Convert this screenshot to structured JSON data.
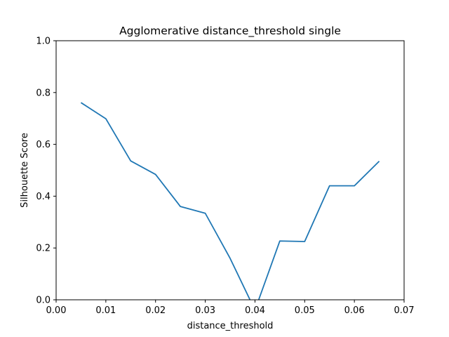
{
  "chart_data": {
    "type": "line",
    "title": "Agglomerative distance_threshold single",
    "xlabel": "distance_threshold",
    "ylabel": "Silhouette Score",
    "xlim": [
      0.0,
      0.07
    ],
    "ylim": [
      0.0,
      1.0
    ],
    "xticks": [
      "0.00",
      "0.01",
      "0.02",
      "0.03",
      "0.04",
      "0.05",
      "0.06",
      "0.07"
    ],
    "yticks": [
      "0.0",
      "0.2",
      "0.4",
      "0.6",
      "0.8",
      "1.0"
    ],
    "grid": false,
    "series": [
      {
        "color": "#1f77b4",
        "x": [
          0.005,
          0.01,
          0.015,
          0.02,
          0.025,
          0.03,
          0.035,
          0.04,
          0.045,
          0.05,
          0.055,
          0.06,
          0.065
        ],
        "y": [
          0.761,
          0.699,
          0.536,
          0.484,
          0.36,
          0.334,
          0.16,
          -0.04,
          0.227,
          0.225,
          0.44,
          0.44,
          0.535
        ]
      }
    ]
  }
}
